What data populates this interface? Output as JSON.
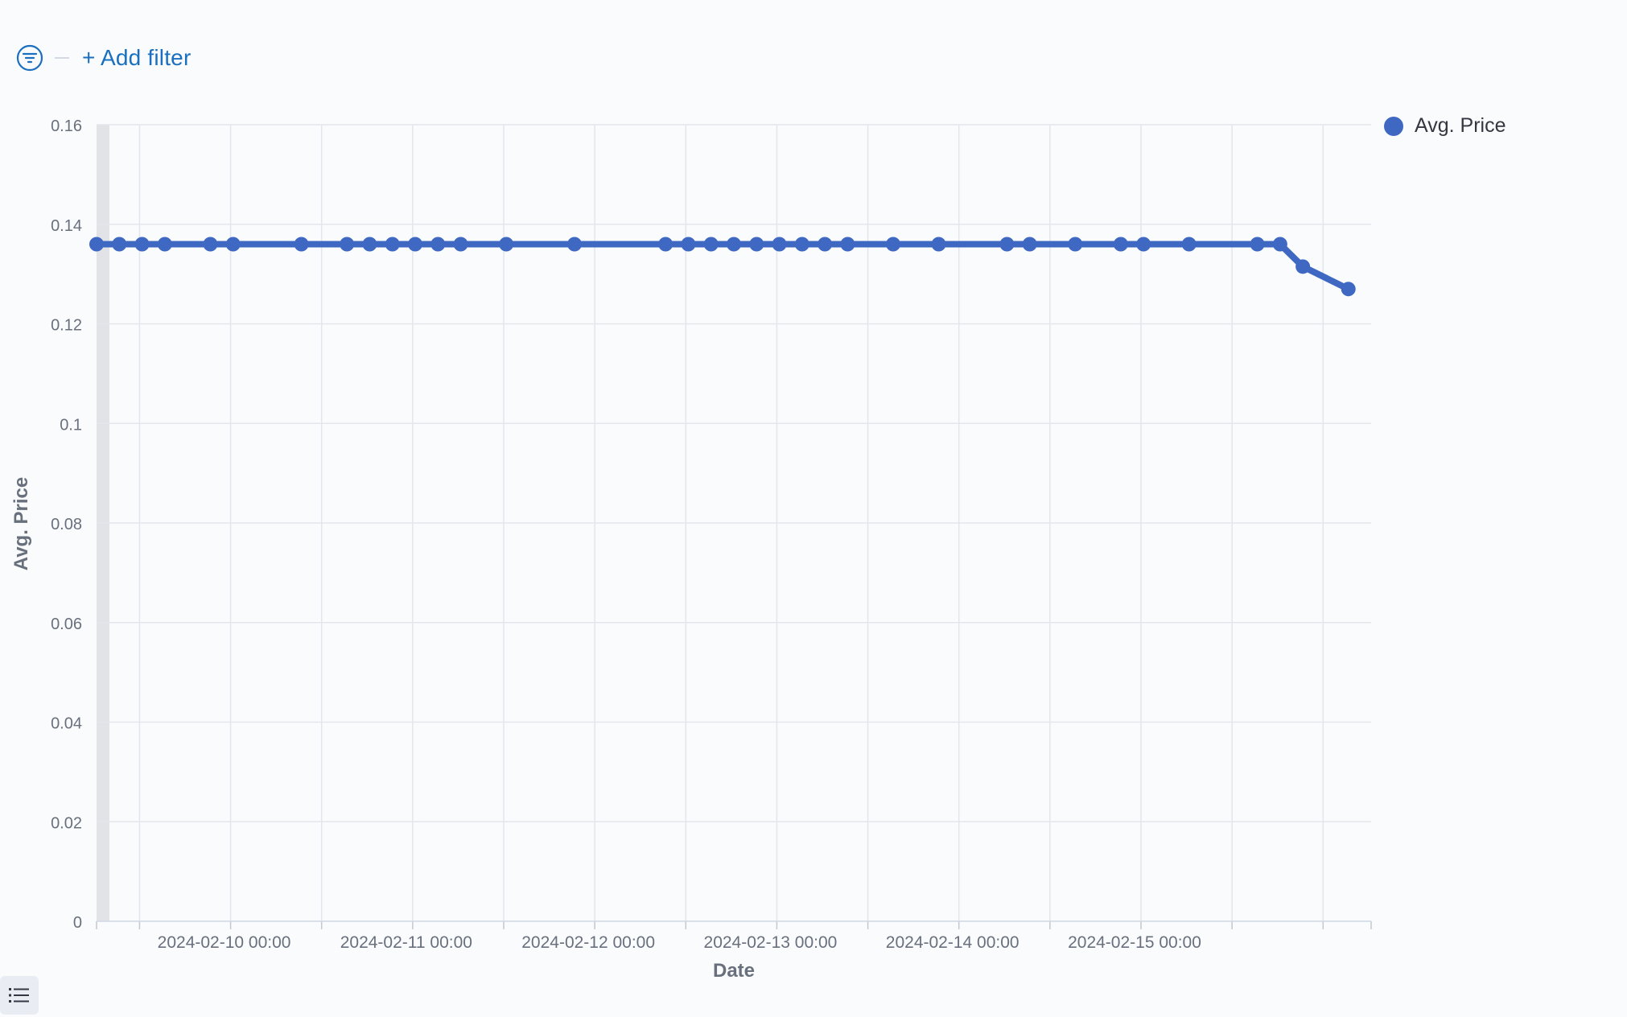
{
  "filter_bar": {
    "add_filter_label": "+ Add filter"
  },
  "legend": {
    "series_name": "Avg. Price",
    "color": "#3f68c3"
  },
  "chart_data": {
    "type": "line",
    "xlabel": "Date",
    "ylabel": "Avg. Price",
    "ylim": [
      0,
      0.16
    ],
    "yticks": [
      0,
      0.02,
      0.04,
      0.06,
      0.08,
      0.1,
      0.12,
      0.14,
      0.16
    ],
    "ytick_labels": [
      "0",
      "0.02",
      "0.04",
      "0.06",
      "0.08",
      "0.1",
      "0.12",
      "0.14",
      "0.16"
    ],
    "xlim": [
      "2024-02-09 06:20",
      "2024-02-16 06:20"
    ],
    "xtick_labels": [
      "2024-02-10 00:00",
      "2024-02-11 00:00",
      "2024-02-12 00:00",
      "2024-02-13 00:00",
      "2024-02-14 00:00",
      "2024-02-15 00:00"
    ],
    "grid": true,
    "legend_position": "top-right",
    "series": [
      {
        "name": "Avg. Price",
        "color": "#3f68c3",
        "x": [
          "2024-02-09 06:20",
          "2024-02-09 09:20",
          "2024-02-09 12:20",
          "2024-02-09 15:20",
          "2024-02-09 21:20",
          "2024-02-10 00:20",
          "2024-02-10 09:20",
          "2024-02-10 15:20",
          "2024-02-10 18:20",
          "2024-02-10 21:20",
          "2024-02-11 00:20",
          "2024-02-11 03:20",
          "2024-02-11 06:20",
          "2024-02-11 12:20",
          "2024-02-11 21:20",
          "2024-02-12 09:20",
          "2024-02-12 12:20",
          "2024-02-12 15:20",
          "2024-02-12 18:20",
          "2024-02-12 21:20",
          "2024-02-13 00:20",
          "2024-02-13 03:20",
          "2024-02-13 06:20",
          "2024-02-13 09:20",
          "2024-02-13 15:20",
          "2024-02-13 21:20",
          "2024-02-14 06:20",
          "2024-02-14 09:20",
          "2024-02-14 15:20",
          "2024-02-14 21:20",
          "2024-02-15 00:20",
          "2024-02-15 06:20",
          "2024-02-15 15:20",
          "2024-02-15 18:20",
          "2024-02-15 21:20",
          "2024-02-16 03:20"
        ],
        "y": [
          0.136,
          0.136,
          0.136,
          0.136,
          0.136,
          0.136,
          0.136,
          0.136,
          0.136,
          0.136,
          0.136,
          0.136,
          0.136,
          0.136,
          0.136,
          0.136,
          0.136,
          0.136,
          0.136,
          0.136,
          0.136,
          0.136,
          0.136,
          0.136,
          0.136,
          0.136,
          0.136,
          0.136,
          0.136,
          0.136,
          0.136,
          0.136,
          0.136,
          0.136,
          0.1315,
          0.127
        ]
      }
    ]
  }
}
